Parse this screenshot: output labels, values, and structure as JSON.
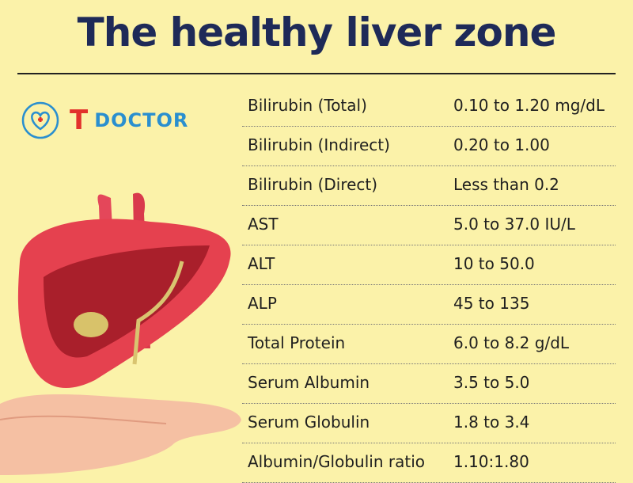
{
  "header": {
    "title": "The healthy liver zone"
  },
  "logo": {
    "letter": "T",
    "name": "DOCTOR"
  },
  "table": {
    "rows": [
      [
        "Bilirubin (Total)",
        "0.10 to 1.20 mg/dL"
      ],
      [
        "Bilirubin (Indirect)",
        "0.20 to 1.00"
      ],
      [
        "Bilirubin (Direct)",
        "Less than 0.2"
      ],
      [
        "AST",
        "5.0 to 37.0 IU/L"
      ],
      [
        "ALT",
        "10 to 50.0"
      ],
      [
        "ALP",
        "45 to 135"
      ],
      [
        "Total Protein",
        "6.0 to 8.2 g/dL"
      ],
      [
        "Serum Albumin",
        "3.5 to 5.0"
      ],
      [
        "Serum Globulin",
        "1.8 to 3.4"
      ],
      [
        "Albumin/Globulin ratio",
        "1.10:1.80"
      ]
    ]
  }
}
